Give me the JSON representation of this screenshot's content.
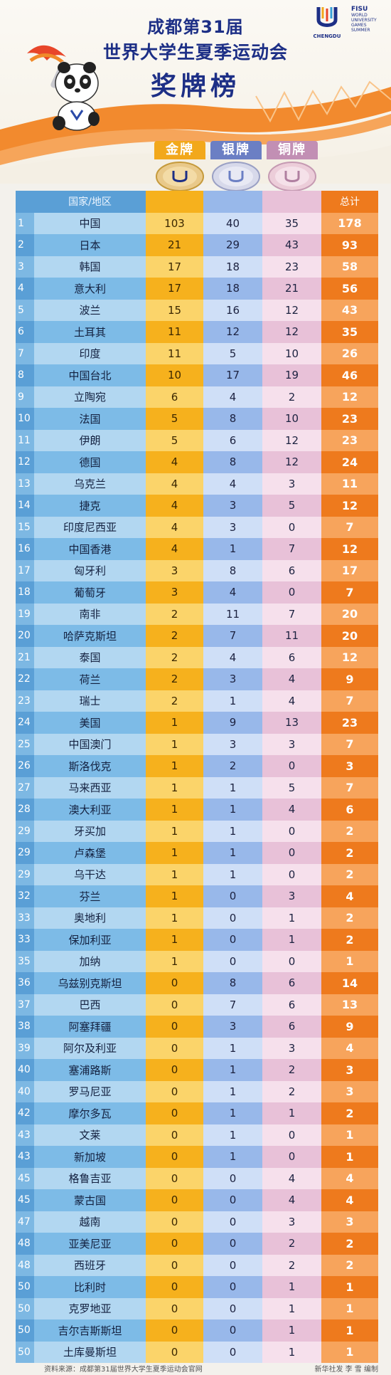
{
  "header": {
    "title_line1": "成都第31届",
    "title_line2": "世界大学生夏季运动会",
    "title_line3": "奖牌榜",
    "chengdu_logo_text": "CHENGDU",
    "fisu_logo_text": "FISU",
    "fisu_sub": [
      "WORLD",
      "UNIVERSITY",
      "GAMES",
      "SUMMER"
    ]
  },
  "medal_tabs": {
    "gold": "金牌",
    "silver": "银牌",
    "bronze": "铜牌"
  },
  "table": {
    "header_name": "国家/地区",
    "header_total": "总计",
    "rows": [
      {
        "rank": "1",
        "name": "中国",
        "gold": "103",
        "silver": "40",
        "bronze": "35",
        "total": "178"
      },
      {
        "rank": "2",
        "name": "日本",
        "gold": "21",
        "silver": "29",
        "bronze": "43",
        "total": "93"
      },
      {
        "rank": "3",
        "name": "韩国",
        "gold": "17",
        "silver": "18",
        "bronze": "23",
        "total": "58"
      },
      {
        "rank": "4",
        "name": "意大利",
        "gold": "17",
        "silver": "18",
        "bronze": "21",
        "total": "56"
      },
      {
        "rank": "5",
        "name": "波兰",
        "gold": "15",
        "silver": "16",
        "bronze": "12",
        "total": "43"
      },
      {
        "rank": "6",
        "name": "土耳其",
        "gold": "11",
        "silver": "12",
        "bronze": "12",
        "total": "35"
      },
      {
        "rank": "7",
        "name": "印度",
        "gold": "11",
        "silver": "5",
        "bronze": "10",
        "total": "26"
      },
      {
        "rank": "8",
        "name": "中国台北",
        "gold": "10",
        "silver": "17",
        "bronze": "19",
        "total": "46"
      },
      {
        "rank": "9",
        "name": "立陶宛",
        "gold": "6",
        "silver": "4",
        "bronze": "2",
        "total": "12"
      },
      {
        "rank": "10",
        "name": "法国",
        "gold": "5",
        "silver": "8",
        "bronze": "10",
        "total": "23"
      },
      {
        "rank": "11",
        "name": "伊朗",
        "gold": "5",
        "silver": "6",
        "bronze": "12",
        "total": "23"
      },
      {
        "rank": "12",
        "name": "德国",
        "gold": "4",
        "silver": "8",
        "bronze": "12",
        "total": "24"
      },
      {
        "rank": "13",
        "name": "乌克兰",
        "gold": "4",
        "silver": "4",
        "bronze": "3",
        "total": "11"
      },
      {
        "rank": "14",
        "name": "捷克",
        "gold": "4",
        "silver": "3",
        "bronze": "5",
        "total": "12"
      },
      {
        "rank": "15",
        "name": "印度尼西亚",
        "gold": "4",
        "silver": "3",
        "bronze": "0",
        "total": "7"
      },
      {
        "rank": "16",
        "name": "中国香港",
        "gold": "4",
        "silver": "1",
        "bronze": "7",
        "total": "12"
      },
      {
        "rank": "17",
        "name": "匈牙利",
        "gold": "3",
        "silver": "8",
        "bronze": "6",
        "total": "17"
      },
      {
        "rank": "18",
        "name": "葡萄牙",
        "gold": "3",
        "silver": "4",
        "bronze": "0",
        "total": "7"
      },
      {
        "rank": "19",
        "name": "南非",
        "gold": "2",
        "silver": "11",
        "bronze": "7",
        "total": "20"
      },
      {
        "rank": "20",
        "name": "哈萨克斯坦",
        "gold": "2",
        "silver": "7",
        "bronze": "11",
        "total": "20"
      },
      {
        "rank": "21",
        "name": "泰国",
        "gold": "2",
        "silver": "4",
        "bronze": "6",
        "total": "12"
      },
      {
        "rank": "22",
        "name": "荷兰",
        "gold": "2",
        "silver": "3",
        "bronze": "4",
        "total": "9"
      },
      {
        "rank": "23",
        "name": "瑞士",
        "gold": "2",
        "silver": "1",
        "bronze": "4",
        "total": "7"
      },
      {
        "rank": "24",
        "name": "美国",
        "gold": "1",
        "silver": "9",
        "bronze": "13",
        "total": "23"
      },
      {
        "rank": "25",
        "name": "中国澳门",
        "gold": "1",
        "silver": "3",
        "bronze": "3",
        "total": "7"
      },
      {
        "rank": "26",
        "name": "斯洛伐克",
        "gold": "1",
        "silver": "2",
        "bronze": "0",
        "total": "3"
      },
      {
        "rank": "27",
        "name": "马来西亚",
        "gold": "1",
        "silver": "1",
        "bronze": "5",
        "total": "7"
      },
      {
        "rank": "28",
        "name": "澳大利亚",
        "gold": "1",
        "silver": "1",
        "bronze": "4",
        "total": "6"
      },
      {
        "rank": "29",
        "name": "牙买加",
        "gold": "1",
        "silver": "1",
        "bronze": "0",
        "total": "2"
      },
      {
        "rank": "29",
        "name": "卢森堡",
        "gold": "1",
        "silver": "1",
        "bronze": "0",
        "total": "2"
      },
      {
        "rank": "29",
        "name": "乌干达",
        "gold": "1",
        "silver": "1",
        "bronze": "0",
        "total": "2"
      },
      {
        "rank": "32",
        "name": "芬兰",
        "gold": "1",
        "silver": "0",
        "bronze": "3",
        "total": "4"
      },
      {
        "rank": "33",
        "name": "奥地利",
        "gold": "1",
        "silver": "0",
        "bronze": "1",
        "total": "2"
      },
      {
        "rank": "33",
        "name": "保加利亚",
        "gold": "1",
        "silver": "0",
        "bronze": "1",
        "total": "2"
      },
      {
        "rank": "35",
        "name": "加纳",
        "gold": "1",
        "silver": "0",
        "bronze": "0",
        "total": "1"
      },
      {
        "rank": "36",
        "name": "乌兹别克斯坦",
        "gold": "0",
        "silver": "8",
        "bronze": "6",
        "total": "14"
      },
      {
        "rank": "37",
        "name": "巴西",
        "gold": "0",
        "silver": "7",
        "bronze": "6",
        "total": "13"
      },
      {
        "rank": "38",
        "name": "阿塞拜疆",
        "gold": "0",
        "silver": "3",
        "bronze": "6",
        "total": "9"
      },
      {
        "rank": "39",
        "name": "阿尔及利亚",
        "gold": "0",
        "silver": "1",
        "bronze": "3",
        "total": "4"
      },
      {
        "rank": "40",
        "name": "塞浦路斯",
        "gold": "0",
        "silver": "1",
        "bronze": "2",
        "total": "3"
      },
      {
        "rank": "40",
        "name": "罗马尼亚",
        "gold": "0",
        "silver": "1",
        "bronze": "2",
        "total": "3"
      },
      {
        "rank": "42",
        "name": "摩尔多瓦",
        "gold": "0",
        "silver": "1",
        "bronze": "1",
        "total": "2"
      },
      {
        "rank": "43",
        "name": "文莱",
        "gold": "0",
        "silver": "1",
        "bronze": "0",
        "total": "1"
      },
      {
        "rank": "43",
        "name": "新加坡",
        "gold": "0",
        "silver": "1",
        "bronze": "0",
        "total": "1"
      },
      {
        "rank": "45",
        "name": "格鲁吉亚",
        "gold": "0",
        "silver": "0",
        "bronze": "4",
        "total": "4"
      },
      {
        "rank": "45",
        "name": "蒙古国",
        "gold": "0",
        "silver": "0",
        "bronze": "4",
        "total": "4"
      },
      {
        "rank": "47",
        "name": "越南",
        "gold": "0",
        "silver": "0",
        "bronze": "3",
        "total": "3"
      },
      {
        "rank": "48",
        "name": "亚美尼亚",
        "gold": "0",
        "silver": "0",
        "bronze": "2",
        "total": "2"
      },
      {
        "rank": "48",
        "name": "西班牙",
        "gold": "0",
        "silver": "0",
        "bronze": "2",
        "total": "2"
      },
      {
        "rank": "50",
        "name": "比利时",
        "gold": "0",
        "silver": "0",
        "bronze": "1",
        "total": "1"
      },
      {
        "rank": "50",
        "name": "克罗地亚",
        "gold": "0",
        "silver": "0",
        "bronze": "1",
        "total": "1"
      },
      {
        "rank": "50",
        "name": "吉尔吉斯斯坦",
        "gold": "0",
        "silver": "0",
        "bronze": "1",
        "total": "1"
      },
      {
        "rank": "50",
        "name": "土库曼斯坦",
        "gold": "0",
        "silver": "0",
        "bronze": "1",
        "total": "1"
      }
    ]
  },
  "footer": {
    "source": "资料来源：成都第31届世界大学生夏季运动会官网",
    "credit": "新华社发 李 雪 编制"
  },
  "colors": {
    "title_blue": "#1d2f86",
    "gold": "#f6b11d",
    "silver": "#98b8ea",
    "bronze": "#e8c1d8",
    "total": "#ee7a1d",
    "name_blue": "#7dbbe7"
  }
}
